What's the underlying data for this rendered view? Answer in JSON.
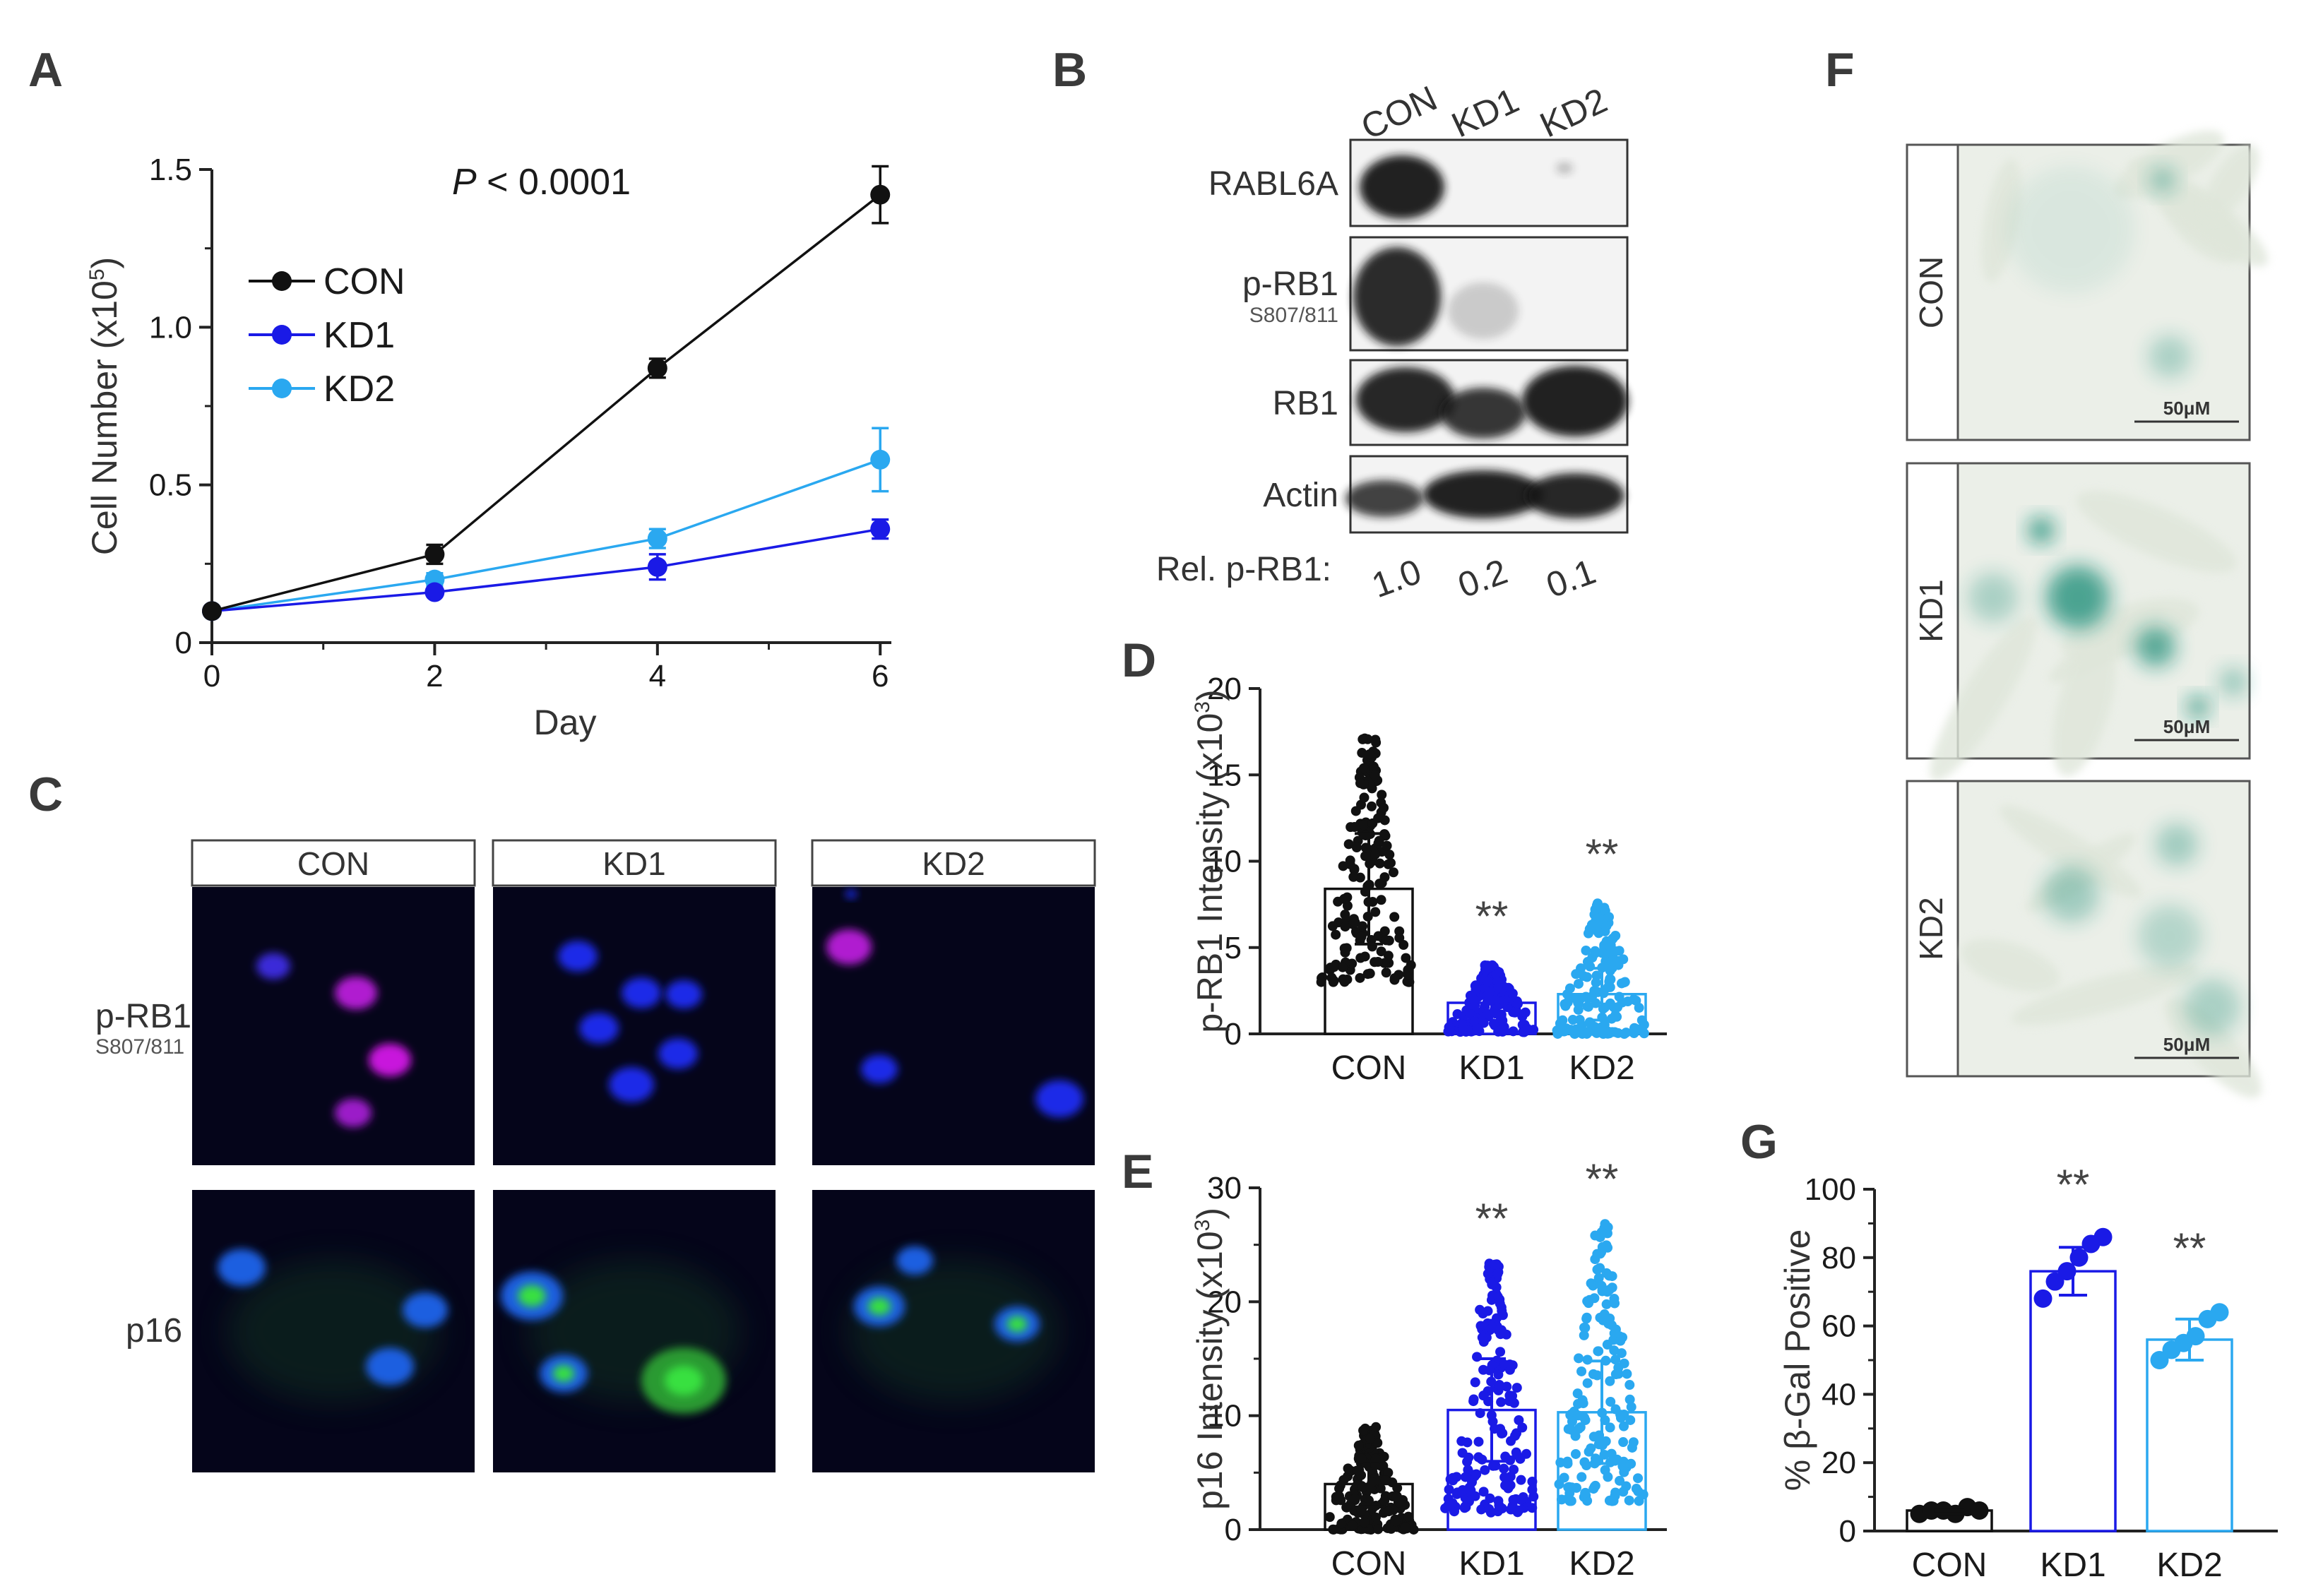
{
  "panels": {
    "A": "A",
    "B": "B",
    "C": "C",
    "D": "D",
    "E": "E",
    "F": "F",
    "G": "G"
  },
  "colors": {
    "CON": "#111111",
    "KD1": "#1a1ae6",
    "KD2": "#2aa8f0"
  },
  "chart_data": [
    {
      "panel": "A",
      "type": "line",
      "x": [
        0,
        2,
        4,
        6
      ],
      "xlabel": "Day",
      "ylabel": "Cell Number (x10",
      "ylabel_sup": "5",
      "ylabel_close": ")",
      "ylim": [
        0,
        1.5
      ],
      "yticks": [
        "0",
        "0.5",
        "1.0",
        "1.5"
      ],
      "xticks": [
        "0",
        "2",
        "4",
        "6"
      ],
      "annotation_italic": "P",
      "annotation_rest": " < 0.0001",
      "legend_position": "top-left",
      "series": [
        {
          "name": "CON",
          "values": [
            0.1,
            0.28,
            0.87,
            1.42
          ],
          "errors": [
            0.01,
            0.03,
            0.03,
            0.09
          ]
        },
        {
          "name": "KD1",
          "values": [
            0.1,
            0.16,
            0.24,
            0.36
          ],
          "errors": [
            0.01,
            0.01,
            0.04,
            0.03
          ]
        },
        {
          "name": "KD2",
          "values": [
            0.1,
            0.2,
            0.33,
            0.58
          ],
          "errors": [
            0.01,
            0.02,
            0.03,
            0.1
          ]
        }
      ]
    },
    {
      "panel": "D",
      "type": "bar",
      "categories": [
        "CON",
        "KD1",
        "KD2"
      ],
      "values": [
        8.4,
        1.8,
        2.3
      ],
      "errors": [
        3.2,
        0.8,
        1.5
      ],
      "point_ranges": [
        [
          3.0,
          17.2
        ],
        [
          0.1,
          4.0
        ],
        [
          0.0,
          7.8
        ]
      ],
      "significance": [
        "",
        "**",
        "**"
      ],
      "ylabel": "p-RB1 Intensity (x10",
      "ylabel_sup": "3",
      "ylabel_close": ")",
      "ylim": [
        0,
        20
      ],
      "yticks": [
        "0",
        "5",
        "10",
        "15",
        "20"
      ]
    },
    {
      "panel": "E",
      "type": "bar",
      "categories": [
        "CON",
        "KD1",
        "KD2"
      ],
      "values": [
        4.0,
        10.5,
        10.3
      ],
      "errors": [
        2.0,
        4.5,
        4.5
      ],
      "point_ranges": [
        [
          0.0,
          9.0
        ],
        [
          1.5,
          24.0
        ],
        [
          2.5,
          27.0
        ]
      ],
      "significance": [
        "",
        "**",
        "**"
      ],
      "ylabel": "p16 Intensity (x10",
      "ylabel_sup": "3",
      "ylabel_close": ")",
      "ylim": [
        0,
        30
      ],
      "yticks": [
        "0",
        "10",
        "20",
        "30"
      ]
    },
    {
      "panel": "G",
      "type": "bar",
      "categories": [
        "CON",
        "KD1",
        "KD2"
      ],
      "values": [
        6,
        76,
        56
      ],
      "errors": [
        1,
        7,
        6
      ],
      "points": [
        [
          5,
          6,
          6,
          5,
          7,
          6
        ],
        [
          68,
          73,
          76,
          80,
          84,
          86
        ],
        [
          50,
          53,
          55,
          57,
          62,
          64
        ]
      ],
      "significance": [
        "",
        "**",
        "**"
      ],
      "ylabel": "% β-Gal Positive",
      "ylim": [
        0,
        100
      ],
      "yticks": [
        "0",
        "20",
        "40",
        "60",
        "80",
        "100"
      ]
    }
  ],
  "blot": {
    "lanes": [
      "CON",
      "KD1",
      "KD2"
    ],
    "rows": [
      {
        "label": "RABL6A",
        "sublabel": ""
      },
      {
        "label": "p-RB1",
        "sublabel": "S807/811"
      },
      {
        "label": "RB1",
        "sublabel": ""
      },
      {
        "label": "Actin",
        "sublabel": ""
      }
    ],
    "relative_label": "Rel. p-RB1:",
    "relative_values": [
      "1.0",
      "0.2",
      "0.1"
    ]
  },
  "fluorescence": {
    "columns": [
      "CON",
      "KD1",
      "KD2"
    ],
    "rows": [
      {
        "label": "p-RB1",
        "sublabel": "S807/811"
      },
      {
        "label": "p16",
        "sublabel": ""
      }
    ]
  },
  "staining": {
    "rows": [
      "CON",
      "KD1",
      "KD2"
    ],
    "scale_bar": "50μM"
  }
}
